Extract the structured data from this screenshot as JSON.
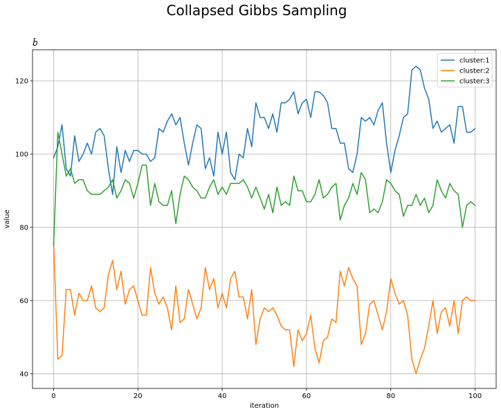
{
  "chart_data": {
    "type": "line",
    "title": "Collapsed Gibbs Sampling",
    "subplot_title": "b̂",
    "xlabel": "iteration",
    "ylabel": "value",
    "xlim": [
      -5,
      105
    ],
    "ylim": [
      36,
      128.5
    ],
    "xticks": [
      0,
      20,
      40,
      60,
      80,
      100
    ],
    "yticks": [
      40,
      60,
      80,
      100,
      120
    ],
    "grid": true,
    "legend_position": "top-right",
    "series": [
      {
        "name": "cluster:1",
        "color": "#1f77b4",
        "values": [
          99,
          102,
          108,
          96,
          94,
          105,
          98,
          100,
          103,
          100,
          106,
          107,
          105,
          96,
          89,
          102,
          95,
          101,
          98,
          101,
          101,
          100,
          100,
          98,
          99,
          107,
          106,
          109,
          111,
          108,
          110,
          103,
          97,
          103,
          108,
          107,
          96,
          99,
          94,
          106,
          100,
          106,
          95,
          93,
          100,
          99,
          107,
          102,
          114,
          110,
          110,
          107,
          111,
          106,
          114,
          114,
          115,
          117,
          111,
          114,
          115,
          110,
          117,
          117,
          116,
          114,
          107,
          107,
          103,
          103,
          96,
          95,
          100,
          110,
          109,
          110,
          108,
          112,
          114,
          103,
          95,
          101,
          105,
          110,
          111,
          123,
          124,
          123,
          118,
          115,
          107,
          109,
          106,
          107,
          108,
          103,
          113,
          113,
          106,
          106,
          107
        ]
      },
      {
        "name": "cluster:2",
        "color": "#ff7f0e",
        "values": [
          76,
          44,
          45,
          63,
          63,
          56,
          62,
          60,
          60,
          64,
          58,
          57,
          58,
          67,
          71,
          63,
          68,
          59,
          63,
          64,
          60,
          56,
          56,
          69,
          62,
          59,
          61,
          58,
          52,
          64,
          54,
          55,
          63,
          59,
          55,
          58,
          69,
          63,
          66,
          58,
          62,
          58,
          66,
          68,
          61,
          61,
          55,
          63,
          48,
          55,
          58,
          57,
          58,
          56,
          53,
          52,
          52,
          42,
          52,
          49,
          51,
          56,
          47,
          43,
          49,
          50,
          55,
          54,
          68,
          64,
          69,
          66,
          64,
          48,
          51,
          59,
          60,
          56,
          52,
          57,
          66,
          62,
          59,
          60,
          56,
          44,
          40,
          44,
          47,
          53,
          60,
          51,
          57,
          58,
          53,
          60,
          51,
          60,
          61,
          60,
          60
        ]
      },
      {
        "name": "cluster:3",
        "color": "#2ca02c",
        "values": [
          75,
          106,
          100,
          94,
          96,
          92,
          93,
          93,
          90,
          89,
          89,
          89,
          90,
          91,
          93,
          88,
          90,
          93,
          92,
          88,
          92,
          97,
          97,
          86,
          92,
          87,
          86,
          86,
          90,
          81,
          89,
          94,
          93,
          91,
          90,
          88,
          88,
          91,
          93,
          89,
          91,
          89,
          92,
          92,
          92,
          93,
          91,
          88,
          91,
          88,
          85,
          89,
          84,
          91,
          86,
          87,
          86,
          94,
          90,
          90,
          87,
          87,
          89,
          93,
          88,
          89,
          91,
          92,
          82,
          86,
          88,
          92,
          89,
          95,
          93,
          84,
          85,
          84,
          87,
          93,
          92,
          90,
          89,
          83,
          86,
          86,
          89,
          86,
          88,
          84,
          86,
          93,
          90,
          88,
          92,
          90,
          89,
          80,
          86,
          87,
          86
        ]
      }
    ]
  }
}
